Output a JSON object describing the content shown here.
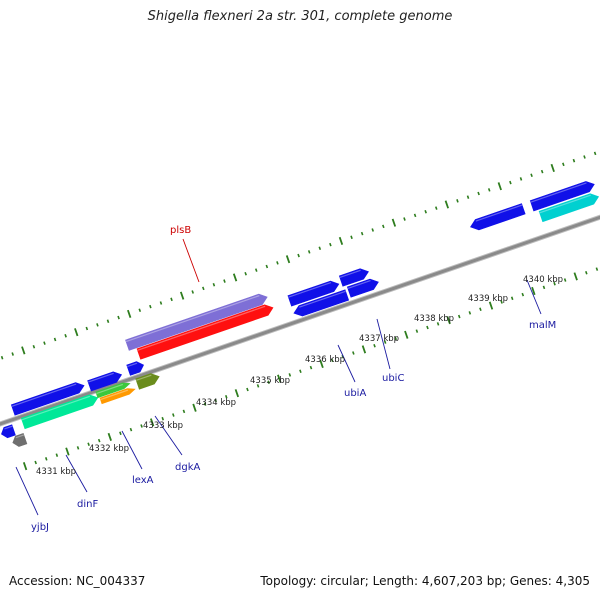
{
  "title": "Shigella flexneri 2a str. 301, complete genome",
  "accession": "Accession: NC_004337",
  "summary": "Topology: circular; Length: 4,607,203 bp; Genes: 4,305",
  "colors": {
    "backbone": "#8a8a8a",
    "tick": "#2e7d1e",
    "label_forward": "#cc0000",
    "label_reverse": "#1a1aa0"
  },
  "axis": {
    "tick_labels": [
      "4331 kbp",
      "4332 kbp",
      "4333 kbp",
      "4334 kbp",
      "4335 kbp",
      "4336 kbp",
      "4337 kbp",
      "4338 kbp",
      "4339 kbp",
      "4340 kbp"
    ]
  },
  "labeled_genes": [
    {
      "name": "plsB",
      "color": "#cc0000"
    },
    {
      "name": "ubiA",
      "color": "#1a1aa0"
    },
    {
      "name": "ubiC",
      "color": "#1a1aa0"
    },
    {
      "name": "malM",
      "color": "#1a1aa0"
    },
    {
      "name": "dgkA",
      "color": "#1a1aa0"
    },
    {
      "name": "lexA",
      "color": "#1a1aa0"
    },
    {
      "name": "dinF",
      "color": "#1a1aa0"
    },
    {
      "name": "yjbJ",
      "color": "#1a1aa0"
    }
  ],
  "features": [
    {
      "color": "#7e6fd6"
    },
    {
      "color": "#ff1010"
    },
    {
      "color": "#1010e8"
    },
    {
      "color": "#00d0d0"
    },
    {
      "color": "#00e898"
    },
    {
      "color": "#3cc83c"
    },
    {
      "color": "#ff9900"
    },
    {
      "color": "#6a8c1c"
    },
    {
      "color": "#6f6f6f"
    }
  ]
}
